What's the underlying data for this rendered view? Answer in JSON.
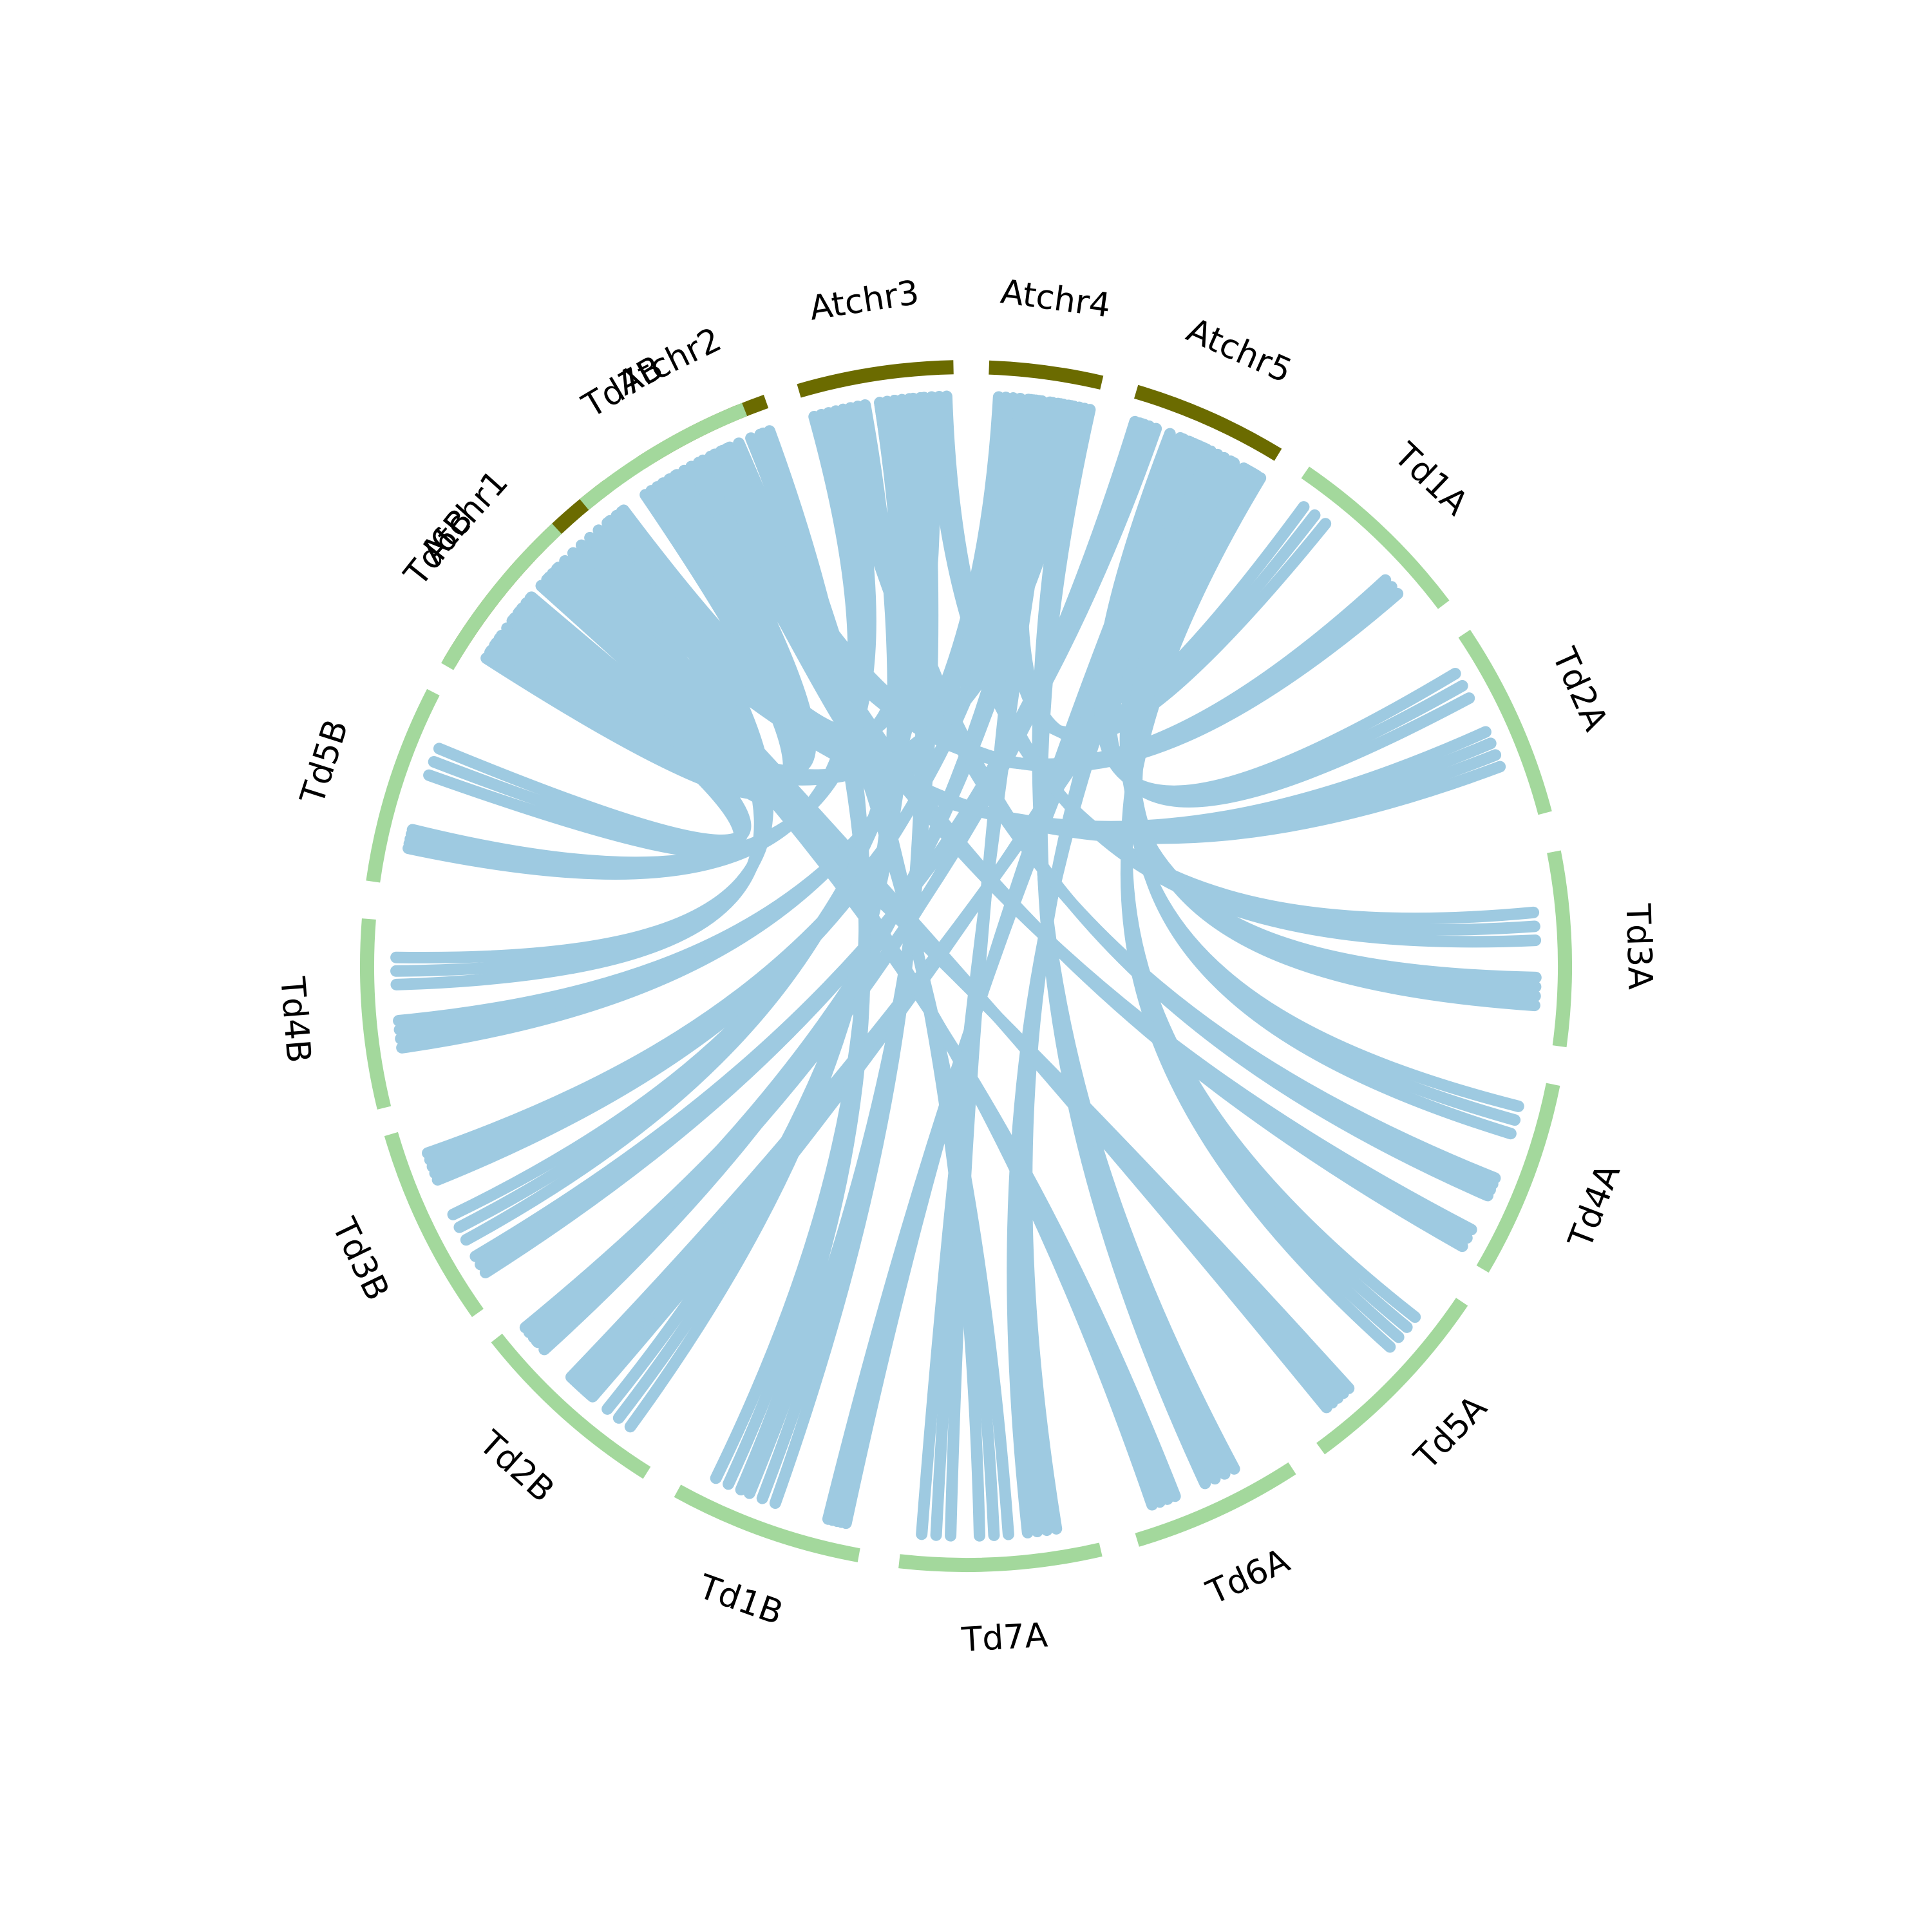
{
  "chart_data": {
    "type": "chord",
    "title": "",
    "colors": {
      "arabidopsis": "#6b6b00",
      "wheat": "#a3d89c",
      "link": "#9ecae1"
    },
    "segments": [
      {
        "label": "Atchr1",
        "group": "arabidopsis",
        "start": 300.4,
        "end": 323.3
      },
      {
        "label": "Atchr2",
        "group": "arabidopsis",
        "start": 327.2,
        "end": 340.5
      },
      {
        "label": "Atchr3",
        "group": "arabidopsis",
        "start": 343.8,
        "end": 358.8
      },
      {
        "label": "Atchr4",
        "group": "arabidopsis",
        "start": 2.2,
        "end": 13.1
      },
      {
        "label": "Atchr5",
        "group": "arabidopsis",
        "start": 16.5,
        "end": 31.4
      },
      {
        "label": "Td1A",
        "group": "wheat",
        "start": 34.5,
        "end": 52.9
      },
      {
        "label": "Td2A",
        "group": "wheat",
        "start": 56.3,
        "end": 75.2
      },
      {
        "label": "Td3A",
        "group": "wheat",
        "start": 79.0,
        "end": 97.7
      },
      {
        "label": "Td4A",
        "group": "wheat",
        "start": 101.4,
        "end": 120.4
      },
      {
        "label": "Td5A",
        "group": "wheat",
        "start": 124.1,
        "end": 143.7
      },
      {
        "label": "Td6A",
        "group": "wheat",
        "start": 147.0,
        "end": 163.4
      },
      {
        "label": "Td7A",
        "group": "wheat",
        "start": 167.0,
        "end": 186.4
      },
      {
        "label": "Td1B",
        "group": "wheat",
        "start": 190.3,
        "end": 208.8
      },
      {
        "label": "Td2B",
        "group": "wheat",
        "start": 212.2,
        "end": 231.6
      },
      {
        "label": "Td3B",
        "group": "wheat",
        "start": 234.6,
        "end": 253.7
      },
      {
        "label": "Td4B",
        "group": "wheat",
        "start": 256.3,
        "end": 274.5
      },
      {
        "label": "Td5B",
        "group": "wheat",
        "start": 278.1,
        "end": 297.2
      },
      {
        "label": "Td6B",
        "group": "wheat",
        "start": 300.0,
        "end": 316.9
      },
      {
        "label": "Td7B",
        "group": "wheat",
        "start": 320.4,
        "end": 338.3
      }
    ],
    "link_bundles": [
      {
        "from": "Atchr5",
        "from_pos": [
          0.85,
          0.95
        ],
        "to": "Td2B",
        "to_pos": [
          0.45,
          0.6
        ],
        "count": 14
      },
      {
        "from": "Atchr5",
        "from_pos": [
          0.05,
          0.15
        ],
        "to": "Td2B",
        "to_pos": [
          0.85,
          0.95
        ],
        "count": 4
      },
      {
        "from": "Atchr5",
        "from_pos": [
          0.4,
          0.55
        ],
        "to": "Td1B",
        "to_pos": [
          0.1,
          0.2
        ],
        "count": 5
      },
      {
        "from": "Atchr5",
        "from_pos": [
          0.9,
          0.98
        ],
        "to": "Td5A",
        "to_pos": [
          0.2,
          0.4
        ],
        "count": 4
      },
      {
        "from": "Atchr5",
        "from_pos": [
          0.1,
          0.2
        ],
        "to": "Td3B",
        "to_pos": [
          0.15,
          0.25
        ],
        "count": 3
      },
      {
        "from": "Atchr5",
        "from_pos": [
          0.5,
          0.6
        ],
        "to": "Td7A",
        "to_pos": [
          0.2,
          0.35
        ],
        "count": 4
      },
      {
        "from": "Atchr4",
        "from_pos": [
          0.1,
          0.3
        ],
        "to": "Td4B",
        "to_pos": [
          0.3,
          0.45
        ],
        "count": 4
      },
      {
        "from": "Atchr4",
        "from_pos": [
          0.4,
          0.5
        ],
        "to": "Td3B",
        "to_pos": [
          0.7,
          0.85
        ],
        "count": 5
      },
      {
        "from": "Atchr4",
        "from_pos": [
          0.6,
          0.75
        ],
        "to": "Td2B",
        "to_pos": [
          0.8,
          0.92
        ],
        "count": 3
      },
      {
        "from": "Atchr4",
        "from_pos": [
          0.8,
          0.95
        ],
        "to": "Td6A",
        "to_pos": [
          0.3,
          0.5
        ],
        "count": 4
      },
      {
        "from": "Atchr3",
        "from_pos": [
          0.05,
          0.25
        ],
        "to": "Td5B",
        "to_pos": [
          0.2,
          0.3
        ],
        "count": 5
      },
      {
        "from": "Atchr3",
        "from_pos": [
          0.4,
          0.6
        ],
        "to": "Td2B",
        "to_pos": [
          0.2,
          0.35
        ],
        "count": 3
      },
      {
        "from": "Atchr3",
        "from_pos": [
          0.65,
          0.8
        ],
        "to": "Td1B",
        "to_pos": [
          0.5,
          0.65
        ],
        "count": 3
      },
      {
        "from": "Atchr3",
        "from_pos": [
          0.85,
          0.95
        ],
        "to": "Td3A",
        "to_pos": [
          0.3,
          0.45
        ],
        "count": 3
      },
      {
        "from": "Atchr3",
        "from_pos": [
          0.2,
          0.35
        ],
        "to": "Td4A",
        "to_pos": [
          0.55,
          0.65
        ],
        "count": 4
      },
      {
        "from": "Atchr2",
        "from_pos": [
          0.05,
          0.3
        ],
        "to": "Td6B",
        "to_pos": [
          0.45,
          0.6
        ],
        "count": 5
      },
      {
        "from": "Atchr2",
        "from_pos": [
          0.4,
          0.6
        ],
        "to": "Td1A",
        "to_pos": [
          0.7,
          0.8
        ],
        "count": 3
      },
      {
        "from": "Atchr2",
        "from_pos": [
          0.7,
          0.9
        ],
        "to": "Td7A",
        "to_pos": [
          0.45,
          0.6
        ],
        "count": 3
      },
      {
        "from": "Atchr2",
        "from_pos": [
          0.3,
          0.5
        ],
        "to": "Td4A",
        "to_pos": [
          0.85,
          0.95
        ],
        "count": 3
      },
      {
        "from": "Atchr1",
        "from_pos": [
          0.1,
          0.3
        ],
        "to": "Td7B",
        "to_pos": [
          0.3,
          0.5
        ],
        "count": 6
      },
      {
        "from": "Atchr1",
        "from_pos": [
          0.3,
          0.5
        ],
        "to": "Td6B",
        "to_pos": [
          0.7,
          0.85
        ],
        "count": 4
      },
      {
        "from": "Atchr1",
        "from_pos": [
          0.5,
          0.7
        ],
        "to": "Td5A",
        "to_pos": [
          0.7,
          0.85
        ],
        "count": 5
      },
      {
        "from": "Atchr1",
        "from_pos": [
          0.75,
          0.9
        ],
        "to": "Td2A",
        "to_pos": [
          0.5,
          0.7
        ],
        "count": 4
      },
      {
        "from": "Atchr1",
        "from_pos": [
          0.6,
          0.75
        ],
        "to": "Td6A",
        "to_pos": [
          0.7,
          0.85
        ],
        "count": 4
      },
      {
        "from": "Atchr1",
        "from_pos": [
          0.85,
          0.98
        ],
        "to": "Td4B",
        "to_pos": [
          0.65,
          0.8
        ],
        "count": 3
      },
      {
        "from": "Atchr2",
        "from_pos": [
          0.55,
          0.7
        ],
        "to": "Td7B",
        "to_pos": [
          0.65,
          0.8
        ],
        "count": 3
      },
      {
        "from": "Atchr3",
        "from_pos": [
          0.5,
          0.6
        ],
        "to": "Td7B",
        "to_pos": [
          0.05,
          0.15
        ],
        "count": 3
      },
      {
        "from": "Atchr4",
        "from_pos": [
          0.3,
          0.45
        ],
        "to": "Td1A",
        "to_pos": [
          0.1,
          0.25
        ],
        "count": 3
      },
      {
        "from": "Atchr5",
        "from_pos": [
          0.6,
          0.75
        ],
        "to": "Td3A",
        "to_pos": [
          0.65,
          0.8
        ],
        "count": 4
      },
      {
        "from": "Atchr5",
        "from_pos": [
          0.3,
          0.45
        ],
        "to": "Td2A",
        "to_pos": [
          0.15,
          0.3
        ],
        "count": 3
      },
      {
        "from": "Atchr4",
        "from_pos": [
          0.5,
          0.65
        ],
        "to": "Td7A",
        "to_pos": [
          0.75,
          0.9
        ],
        "count": 3
      },
      {
        "from": "Atchr2",
        "from_pos": [
          0.8,
          0.95
        ],
        "to": "Td1B",
        "to_pos": [
          0.7,
          0.85
        ],
        "count": 3
      },
      {
        "from": "Atchr1",
        "from_pos": [
          0.3,
          0.4
        ],
        "to": "Td5B",
        "to_pos": [
          0.6,
          0.75
        ],
        "count": 3
      },
      {
        "from": "Atchr3",
        "from_pos": [
          0.7,
          0.85
        ],
        "to": "Td3B",
        "to_pos": [
          0.35,
          0.5
        ],
        "count": 3
      },
      {
        "from": "Atchr5",
        "from_pos": [
          0.7,
          0.85
        ],
        "to": "Td4A",
        "to_pos": [
          0.15,
          0.3
        ],
        "count": 3
      },
      {
        "from": "Atchr4",
        "from_pos": [
          0.7,
          0.85
        ],
        "to": "Td6B",
        "to_pos": [
          0.2,
          0.3
        ],
        "count": 3
      }
    ]
  }
}
